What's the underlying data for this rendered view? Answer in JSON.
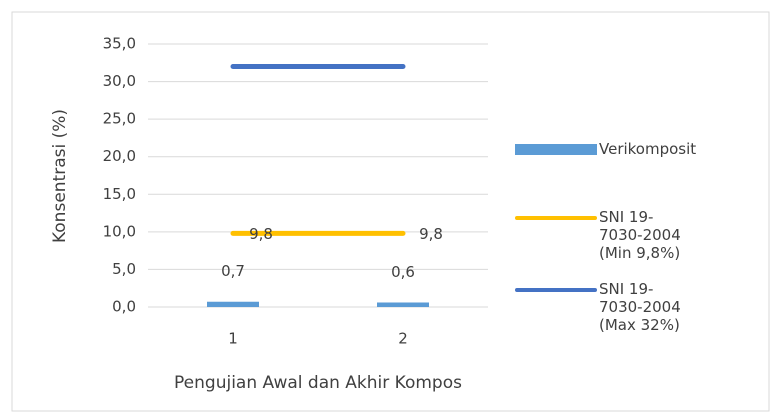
{
  "chart_data": {
    "type": "bar",
    "ylabel": "Konsentrasi (%)",
    "xlabel": "Pengujian Awal dan Akhir Kompos",
    "categories": [
      "1",
      "2"
    ],
    "series": [
      {
        "name": "Verikomposit",
        "type": "bar",
        "color": "#5b9bd5",
        "values": [
          0.7,
          0.6
        ],
        "value_labels": [
          "0,7",
          "0,6"
        ]
      },
      {
        "name": "SNI 19-7030-2004 (Min 9,8%)",
        "type": "line",
        "color": "#ffc000",
        "values": [
          9.8,
          9.8
        ],
        "value_labels": [
          "9,8",
          "9,8"
        ]
      },
      {
        "name": "SNI 19-7030-2004 (Max 32%)",
        "type": "line",
        "color": "#4472c4",
        "values": [
          32,
          32
        ]
      }
    ],
    "ylim": [
      0,
      35
    ],
    "yticks": [
      {
        "value": 0,
        "label": "0,0"
      },
      {
        "value": 5,
        "label": "5,0"
      },
      {
        "value": 10,
        "label": "10,0"
      },
      {
        "value": 15,
        "label": "15,0"
      },
      {
        "value": 20,
        "label": "20,0"
      },
      {
        "value": 25,
        "label": "25,0"
      },
      {
        "value": 30,
        "label": "30,0"
      },
      {
        "value": 35,
        "label": "35,0"
      }
    ],
    "grid": true,
    "legend": "right"
  }
}
